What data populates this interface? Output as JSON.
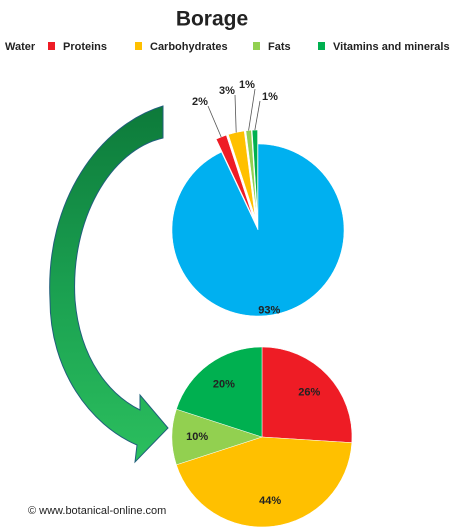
{
  "chart_data": [
    {
      "type": "pie",
      "title": "Borage",
      "categories": [
        "Water",
        "Proteins",
        "Carbohydrates",
        "Fats",
        "Vitamins and minerals"
      ],
      "values": [
        93,
        2,
        3,
        1,
        1
      ],
      "value_labels": [
        "93%",
        "2%",
        "3%",
        "1%",
        "1%"
      ],
      "colors": [
        "#00b0f0",
        "#ee1c25",
        "#ffc000",
        "#92d050",
        "#00b050"
      ],
      "source": "© www.botanical-online.com"
    },
    {
      "type": "pie",
      "values": [
        26,
        44,
        10,
        20
      ],
      "value_labels": [
        "26%",
        "44%",
        "10%",
        "20%"
      ],
      "colors": [
        "#ee1c25",
        "#ffc000",
        "#92d050",
        "#00b050"
      ]
    }
  ]
}
